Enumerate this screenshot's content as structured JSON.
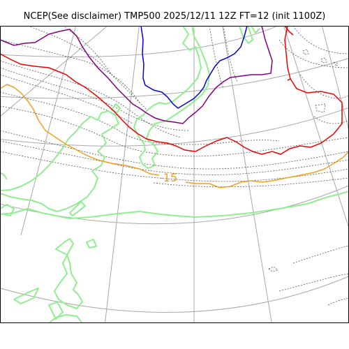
{
  "title": "NCEP(See disclaimer) TMP500 2025/12/11 12Z FT=12 (init 1100Z)",
  "contour_labels": [
    {
      "value": "-15",
      "color": "#f0a020"
    }
  ],
  "colors": {
    "grid": "#a8a8a8",
    "coastline": "#90ee90",
    "isotherm_dotted": "#555555",
    "isotherm_blue": "#0000dd",
    "isotherm_purple": "#800080",
    "isotherm_red": "#ee0000",
    "isotherm_orange": "#f0a020",
    "frame": "#000000"
  },
  "map": {
    "projection": "polar-stereographic",
    "field": "TMP500"
  }
}
